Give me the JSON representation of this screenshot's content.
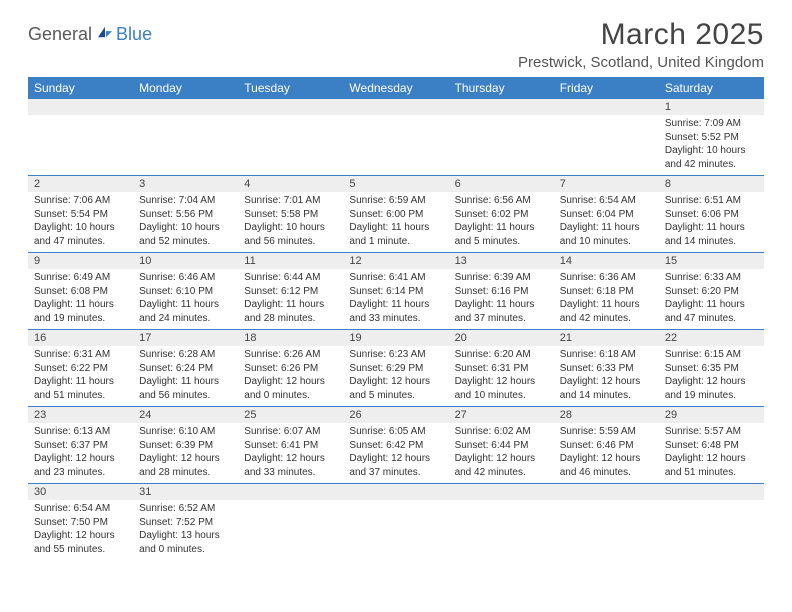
{
  "brand": {
    "part1": "General",
    "part2": "Blue"
  },
  "title": "March 2025",
  "location": "Prestwick, Scotland, United Kingdom",
  "colors": {
    "header_bg": "#3b7fc4",
    "header_text": "#ffffff",
    "daynum_bg": "#eeeeee",
    "page_bg": "#ffffff",
    "text": "#333333"
  },
  "weekdays": [
    "Sunday",
    "Monday",
    "Tuesday",
    "Wednesday",
    "Thursday",
    "Friday",
    "Saturday"
  ],
  "weeks": [
    {
      "nums": [
        "",
        "",
        "",
        "",
        "",
        "",
        "1"
      ],
      "info": [
        "",
        "",
        "",
        "",
        "",
        "",
        "Sunrise: 7:09 AM\nSunset: 5:52 PM\nDaylight: 10 hours and 42 minutes."
      ]
    },
    {
      "nums": [
        "2",
        "3",
        "4",
        "5",
        "6",
        "7",
        "8"
      ],
      "info": [
        "Sunrise: 7:06 AM\nSunset: 5:54 PM\nDaylight: 10 hours and 47 minutes.",
        "Sunrise: 7:04 AM\nSunset: 5:56 PM\nDaylight: 10 hours and 52 minutes.",
        "Sunrise: 7:01 AM\nSunset: 5:58 PM\nDaylight: 10 hours and 56 minutes.",
        "Sunrise: 6:59 AM\nSunset: 6:00 PM\nDaylight: 11 hours and 1 minute.",
        "Sunrise: 6:56 AM\nSunset: 6:02 PM\nDaylight: 11 hours and 5 minutes.",
        "Sunrise: 6:54 AM\nSunset: 6:04 PM\nDaylight: 11 hours and 10 minutes.",
        "Sunrise: 6:51 AM\nSunset: 6:06 PM\nDaylight: 11 hours and 14 minutes."
      ]
    },
    {
      "nums": [
        "9",
        "10",
        "11",
        "12",
        "13",
        "14",
        "15"
      ],
      "info": [
        "Sunrise: 6:49 AM\nSunset: 6:08 PM\nDaylight: 11 hours and 19 minutes.",
        "Sunrise: 6:46 AM\nSunset: 6:10 PM\nDaylight: 11 hours and 24 minutes.",
        "Sunrise: 6:44 AM\nSunset: 6:12 PM\nDaylight: 11 hours and 28 minutes.",
        "Sunrise: 6:41 AM\nSunset: 6:14 PM\nDaylight: 11 hours and 33 minutes.",
        "Sunrise: 6:39 AM\nSunset: 6:16 PM\nDaylight: 11 hours and 37 minutes.",
        "Sunrise: 6:36 AM\nSunset: 6:18 PM\nDaylight: 11 hours and 42 minutes.",
        "Sunrise: 6:33 AM\nSunset: 6:20 PM\nDaylight: 11 hours and 47 minutes."
      ]
    },
    {
      "nums": [
        "16",
        "17",
        "18",
        "19",
        "20",
        "21",
        "22"
      ],
      "info": [
        "Sunrise: 6:31 AM\nSunset: 6:22 PM\nDaylight: 11 hours and 51 minutes.",
        "Sunrise: 6:28 AM\nSunset: 6:24 PM\nDaylight: 11 hours and 56 minutes.",
        "Sunrise: 6:26 AM\nSunset: 6:26 PM\nDaylight: 12 hours and 0 minutes.",
        "Sunrise: 6:23 AM\nSunset: 6:29 PM\nDaylight: 12 hours and 5 minutes.",
        "Sunrise: 6:20 AM\nSunset: 6:31 PM\nDaylight: 12 hours and 10 minutes.",
        "Sunrise: 6:18 AM\nSunset: 6:33 PM\nDaylight: 12 hours and 14 minutes.",
        "Sunrise: 6:15 AM\nSunset: 6:35 PM\nDaylight: 12 hours and 19 minutes."
      ]
    },
    {
      "nums": [
        "23",
        "24",
        "25",
        "26",
        "27",
        "28",
        "29"
      ],
      "info": [
        "Sunrise: 6:13 AM\nSunset: 6:37 PM\nDaylight: 12 hours and 23 minutes.",
        "Sunrise: 6:10 AM\nSunset: 6:39 PM\nDaylight: 12 hours and 28 minutes.",
        "Sunrise: 6:07 AM\nSunset: 6:41 PM\nDaylight: 12 hours and 33 minutes.",
        "Sunrise: 6:05 AM\nSunset: 6:42 PM\nDaylight: 12 hours and 37 minutes.",
        "Sunrise: 6:02 AM\nSunset: 6:44 PM\nDaylight: 12 hours and 42 minutes.",
        "Sunrise: 5:59 AM\nSunset: 6:46 PM\nDaylight: 12 hours and 46 minutes.",
        "Sunrise: 5:57 AM\nSunset: 6:48 PM\nDaylight: 12 hours and 51 minutes."
      ]
    },
    {
      "nums": [
        "30",
        "31",
        "",
        "",
        "",
        "",
        ""
      ],
      "info": [
        "Sunrise: 6:54 AM\nSunset: 7:50 PM\nDaylight: 12 hours and 55 minutes.",
        "Sunrise: 6:52 AM\nSunset: 7:52 PM\nDaylight: 13 hours and 0 minutes.",
        "",
        "",
        "",
        "",
        ""
      ]
    }
  ]
}
